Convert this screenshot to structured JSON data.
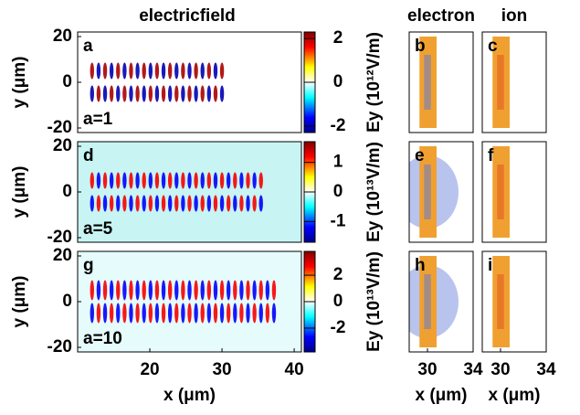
{
  "column_titles": [
    "electricfield",
    "electron",
    "ion"
  ],
  "chart_data": [
    {
      "type": "heatmap",
      "label": "a",
      "annotation": "a=1",
      "xlim": [
        10,
        41
      ],
      "ylim": [
        -22,
        22
      ],
      "yticks": [
        -20,
        0,
        20
      ],
      "ylabel": "y (μm)",
      "colorbar": {
        "clim": [
          -2.3,
          2.3
        ],
        "ticks": [
          -2,
          0,
          2
        ]
      }
    },
    {
      "type": "density",
      "label": "b",
      "xlim": [
        28.4,
        34
      ],
      "ylim": [
        -22,
        22
      ],
      "colorbar_label": "Ey (10¹²V/m)"
    },
    {
      "type": "density",
      "label": "c",
      "xlim": [
        28.4,
        34
      ],
      "ylim": [
        -22,
        22
      ]
    },
    {
      "type": "heatmap",
      "label": "d",
      "annotation": "a=5",
      "xlim": [
        10,
        41
      ],
      "ylim": [
        -22,
        22
      ],
      "yticks": [
        -20,
        0,
        20
      ],
      "ylabel": "y (μm)",
      "colorbar": {
        "clim": [
          -1.7,
          1.7
        ],
        "ticks": [
          -1,
          0,
          1
        ]
      }
    },
    {
      "type": "density",
      "label": "e",
      "xlim": [
        28.4,
        34
      ],
      "ylim": [
        -22,
        22
      ],
      "colorbar_label": "Ey (10¹³V/m)"
    },
    {
      "type": "density",
      "label": "f",
      "xlim": [
        28.4,
        34
      ],
      "ylim": [
        -22,
        22
      ]
    },
    {
      "type": "heatmap",
      "label": "g",
      "annotation": "a=10",
      "xlim": [
        10,
        41
      ],
      "ylim": [
        -22,
        22
      ],
      "yticks": [
        -20,
        0,
        20
      ],
      "ylabel": "y (μm)",
      "xticks": [
        20,
        30,
        40
      ],
      "xlabel": "x (μm)",
      "colorbar": {
        "clim": [
          -3.8,
          3.8
        ],
        "ticks": [
          -2,
          0,
          2
        ]
      }
    },
    {
      "type": "density",
      "label": "h",
      "xlim": [
        28.4,
        34
      ],
      "ylim": [
        -22,
        22
      ],
      "xticks": [
        30,
        34
      ],
      "xlabel": "x (μm)",
      "colorbar_label": "Ey (10¹³V/m)"
    },
    {
      "type": "density",
      "label": "i",
      "xlim": [
        28.4,
        34
      ],
      "ylim": [
        -22,
        22
      ],
      "xticks": [
        30,
        34
      ],
      "xlabel": "x (μm)"
    }
  ]
}
